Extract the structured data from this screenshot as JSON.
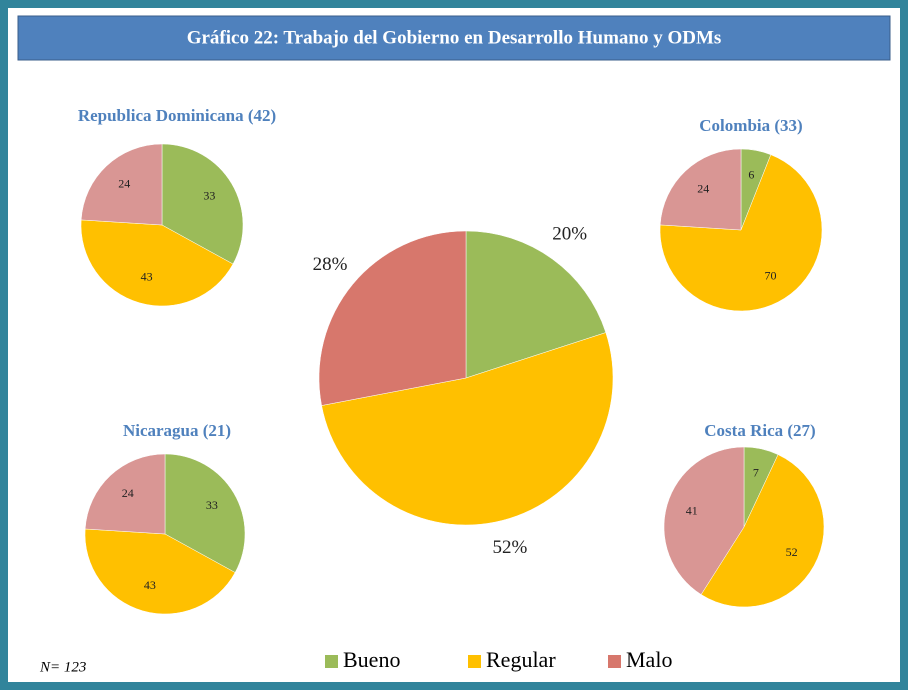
{
  "title": "Gráfico 22: Trabajo del Gobierno en Desarrollo Humano y ODMs",
  "note": "N= 123",
  "chart_data": [
    {
      "type": "pie",
      "categories": [
        "Bueno",
        "Regular",
        "Malo"
      ],
      "values": [
        20,
        52,
        28
      ],
      "value_labels": [
        "20%",
        "52%",
        "28%"
      ],
      "colors": [
        "#9bbb59",
        "#ffc000",
        "#d7776c"
      ]
    },
    {
      "type": "pie",
      "title": "Republica Dominicana (42)",
      "categories": [
        "Bueno",
        "Regular",
        "Malo"
      ],
      "values": [
        33,
        43,
        24
      ],
      "colors": [
        "#9bbb59",
        "#ffc000",
        "#d99694"
      ]
    },
    {
      "type": "pie",
      "title": "Colombia (33)",
      "categories": [
        "Bueno",
        "Regular",
        "Malo"
      ],
      "values": [
        6,
        70,
        24
      ],
      "colors": [
        "#9bbb59",
        "#ffc000",
        "#d99694"
      ]
    },
    {
      "type": "pie",
      "title": "Nicaragua (21)",
      "categories": [
        "Bueno",
        "Regular",
        "Malo"
      ],
      "values": [
        33,
        43,
        24
      ],
      "colors": [
        "#9bbb59",
        "#ffc000",
        "#d99694"
      ]
    },
    {
      "type": "pie",
      "title": "Costa Rica (27)",
      "categories": [
        "Bueno",
        "Regular",
        "Malo"
      ],
      "values": [
        7,
        52,
        41
      ],
      "colors": [
        "#9bbb59",
        "#ffc000",
        "#d99694"
      ]
    }
  ]
}
